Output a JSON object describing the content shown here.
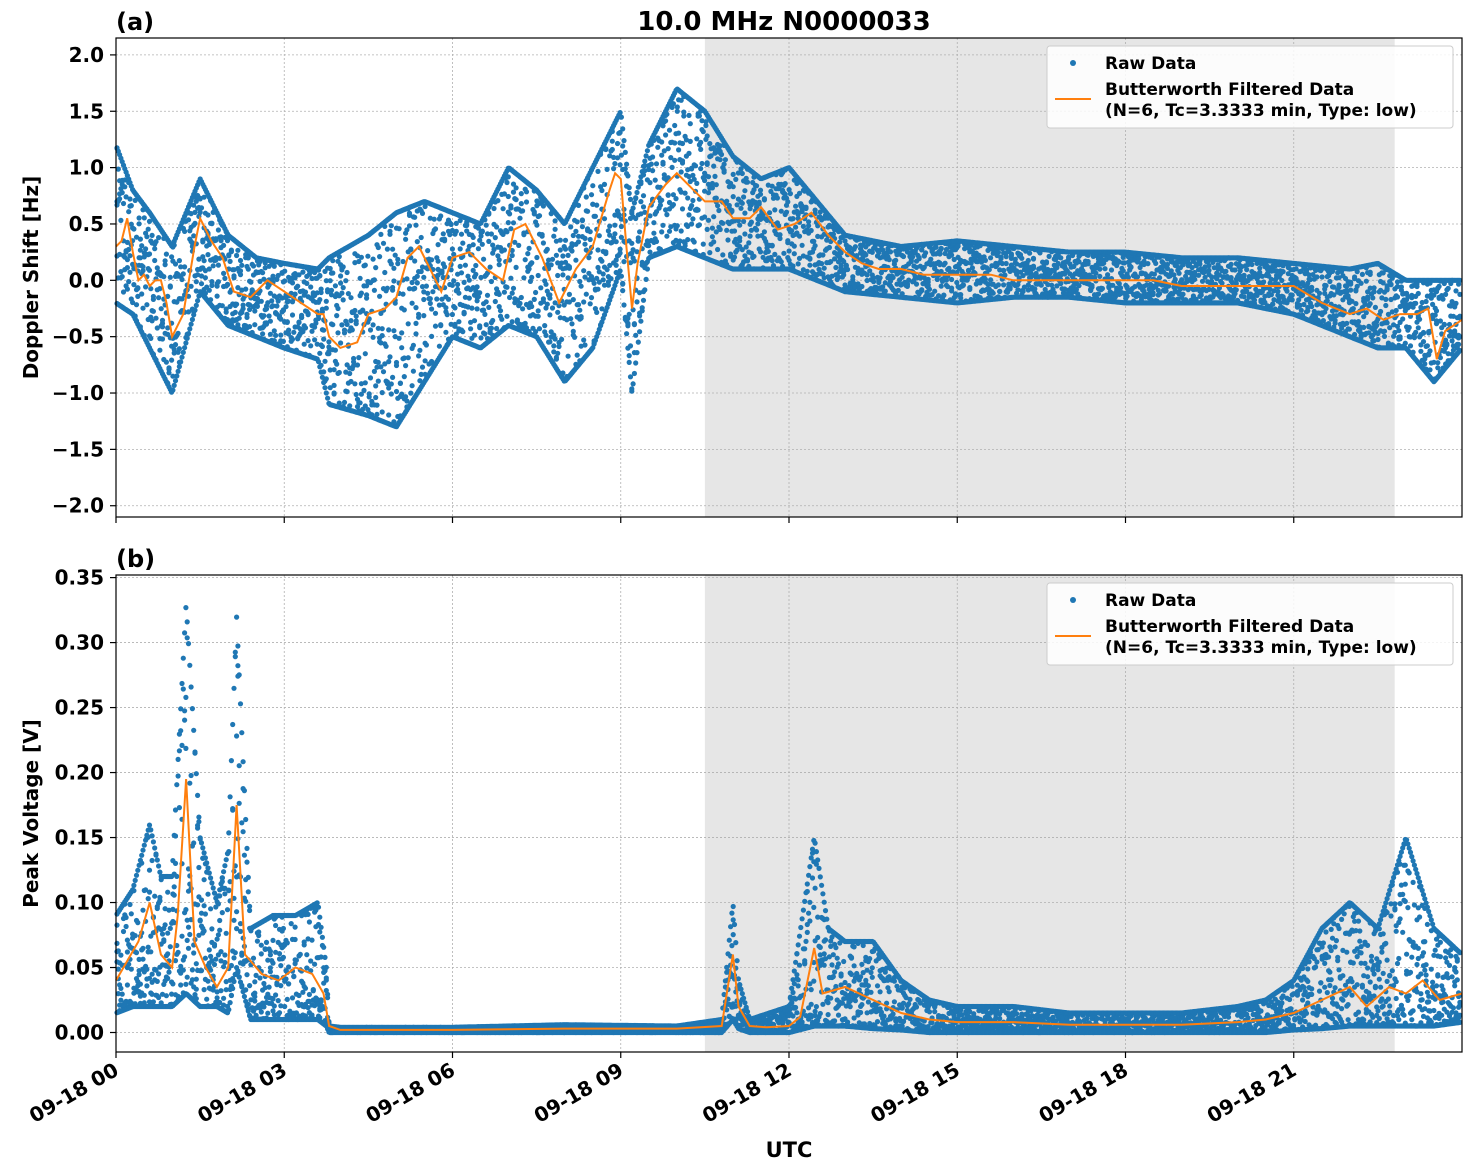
{
  "figure": {
    "title": "10.0 MHz N0000033",
    "xlabel": "UTC",
    "x_ticks": [
      "09-18 00",
      "09-18 03",
      "09-18 06",
      "09-18 09",
      "09-18 12",
      "09-18 15",
      "09-18 18",
      "09-18 21"
    ],
    "x_tick_hours": [
      0,
      3,
      6,
      9,
      12,
      15,
      18,
      21
    ],
    "xlim_hours": [
      0,
      24
    ],
    "shaded_region_hours": [
      10.5,
      22.8
    ],
    "colors": {
      "raw": "#1f77b4",
      "filtered": "#ff7f0e",
      "shade": "#e6e6e6",
      "grid": "#b0b0b0"
    }
  },
  "legend": {
    "raw_label": "Raw Data",
    "filtered_line1": "Butterworth Filtered Data",
    "filtered_line2": "(N=6, Tc=3.3333 min, Type: low)"
  },
  "chart_data": [
    {
      "type": "scatter",
      "panel_label": "(a)",
      "ylabel": "Doppler Shift [Hz]",
      "ylim": [
        -2.1,
        2.15
      ],
      "y_ticks": [
        2.0,
        1.5,
        1.0,
        0.5,
        0.0,
        -0.5,
        -1.0,
        -1.5,
        -2.0
      ],
      "y_tick_labels": [
        "2.0",
        "1.5",
        "1.0",
        "0.5",
        "0.0",
        "−0.5",
        "−1.0",
        "−1.5",
        "−2.0"
      ],
      "grid": true,
      "legend_position": "top-right",
      "series": [
        {
          "name": "Butterworth Filtered Data",
          "x_hours": [
            0,
            0.1,
            0.2,
            0.3,
            0.4,
            0.5,
            0.6,
            0.7,
            0.8,
            0.9,
            1.0,
            1.2,
            1.4,
            1.5,
            1.7,
            1.9,
            2.1,
            2.4,
            2.7,
            3.0,
            3.3,
            3.6,
            3.7,
            3.8,
            4.0,
            4.3,
            4.5,
            4.8,
            5.0,
            5.2,
            5.4,
            5.6,
            5.8,
            6.0,
            6.3,
            6.6,
            6.9,
            7.1,
            7.3,
            7.6,
            7.9,
            8.2,
            8.5,
            8.8,
            8.9,
            9.0,
            9.1,
            9.2,
            9.3,
            9.5,
            9.8,
            10.0,
            10.3,
            10.5,
            10.8,
            11.0,
            11.3,
            11.5,
            11.8,
            12.1,
            12.4,
            12.7,
            13.0,
            13.3,
            13.6,
            14.0,
            14.4,
            14.8,
            15.2,
            15.6,
            16.0,
            16.5,
            17.0,
            17.5,
            18.0,
            18.5,
            19.0,
            19.5,
            20.0,
            20.5,
            21.0,
            21.5,
            22.0,
            22.3,
            22.6,
            22.9,
            23.2,
            23.4,
            23.55,
            23.7,
            23.85,
            24.0
          ],
          "y": [
            0.3,
            0.35,
            0.55,
            0.25,
            0.0,
            0.05,
            -0.05,
            0.0,
            0.0,
            -0.2,
            -0.5,
            -0.3,
            0.3,
            0.55,
            0.35,
            0.2,
            -0.1,
            -0.15,
            0.0,
            -0.1,
            -0.2,
            -0.3,
            -0.3,
            -0.5,
            -0.6,
            -0.55,
            -0.3,
            -0.25,
            -0.15,
            0.2,
            0.3,
            0.1,
            -0.1,
            0.2,
            0.25,
            0.1,
            0.0,
            0.45,
            0.5,
            0.2,
            -0.2,
            0.1,
            0.3,
            0.8,
            0.95,
            0.9,
            0.3,
            -0.25,
            0.15,
            0.65,
            0.85,
            0.95,
            0.8,
            0.7,
            0.7,
            0.55,
            0.55,
            0.65,
            0.45,
            0.5,
            0.6,
            0.4,
            0.25,
            0.15,
            0.1,
            0.1,
            0.05,
            0.05,
            0.05,
            0.05,
            0.0,
            0.0,
            0.0,
            0.0,
            0.0,
            0.0,
            -0.05,
            -0.05,
            -0.05,
            -0.05,
            -0.05,
            -0.2,
            -0.3,
            -0.25,
            -0.35,
            -0.3,
            -0.3,
            -0.25,
            -0.7,
            -0.45,
            -0.4,
            -0.35
          ]
        }
      ],
      "raw_data_band": {
        "name": "Raw Data",
        "x_hours": [
          0,
          0.3,
          0.6,
          1.0,
          1.5,
          2.0,
          2.5,
          3.0,
          3.6,
          3.8,
          4.5,
          5.0,
          5.5,
          6.0,
          6.5,
          7.0,
          7.5,
          8.0,
          8.5,
          9.0,
          9.2,
          9.5,
          10.0,
          10.5,
          11.0,
          11.5,
          12.0,
          12.5,
          13.0,
          14.0,
          15.0,
          16.0,
          17.0,
          18.0,
          19.0,
          20.0,
          21.0,
          22.0,
          22.5,
          23.0,
          23.5,
          24.0
        ],
        "upper": [
          1.2,
          0.8,
          0.6,
          0.3,
          0.9,
          0.4,
          0.2,
          0.15,
          0.1,
          0.2,
          0.4,
          0.6,
          0.7,
          0.6,
          0.5,
          1.0,
          0.8,
          0.5,
          1.0,
          1.5,
          0.6,
          1.2,
          1.7,
          1.5,
          1.1,
          0.9,
          1.0,
          0.7,
          0.4,
          0.3,
          0.35,
          0.3,
          0.25,
          0.25,
          0.2,
          0.2,
          0.15,
          0.1,
          0.15,
          0.0,
          0.0,
          0.0
        ],
        "lower": [
          -0.2,
          -0.3,
          -0.6,
          -1.0,
          -0.1,
          -0.4,
          -0.5,
          -0.6,
          -0.7,
          -1.1,
          -1.2,
          -1.3,
          -0.9,
          -0.5,
          -0.6,
          -0.4,
          -0.5,
          -0.9,
          -0.6,
          0.1,
          -1.0,
          0.2,
          0.3,
          0.2,
          0.1,
          0.1,
          0.1,
          0.0,
          -0.1,
          -0.15,
          -0.2,
          -0.15,
          -0.15,
          -0.2,
          -0.2,
          -0.2,
          -0.3,
          -0.5,
          -0.6,
          -0.6,
          -0.9,
          -0.6
        ]
      }
    },
    {
      "type": "scatter",
      "panel_label": "(b)",
      "ylabel": "Peak Voltage [V]",
      "ylim": [
        -0.015,
        0.352
      ],
      "y_ticks": [
        0.35,
        0.3,
        0.25,
        0.2,
        0.15,
        0.1,
        0.05,
        0.0
      ],
      "y_tick_labels": [
        "0.35",
        "0.30",
        "0.25",
        "0.20",
        "0.15",
        "0.10",
        "0.05",
        "0.00"
      ],
      "grid": true,
      "legend_position": "top-right",
      "series": [
        {
          "name": "Butterworth Filtered Data",
          "x_hours": [
            0,
            0.2,
            0.4,
            0.6,
            0.8,
            1.0,
            1.1,
            1.25,
            1.4,
            1.6,
            1.8,
            2.0,
            2.15,
            2.3,
            2.6,
            2.9,
            3.2,
            3.5,
            3.7,
            3.8,
            4.0,
            6.0,
            8.0,
            10.0,
            10.8,
            11.0,
            11.1,
            11.3,
            11.6,
            12.0,
            12.2,
            12.45,
            12.6,
            13.0,
            13.5,
            14.0,
            14.5,
            15.0,
            16.0,
            17.0,
            18.0,
            19.0,
            20.0,
            20.5,
            21.0,
            21.5,
            22.0,
            22.3,
            22.7,
            23.0,
            23.3,
            23.6,
            24.0
          ],
          "y": [
            0.04,
            0.055,
            0.07,
            0.1,
            0.06,
            0.05,
            0.09,
            0.195,
            0.07,
            0.05,
            0.035,
            0.05,
            0.175,
            0.06,
            0.045,
            0.04,
            0.05,
            0.045,
            0.03,
            0.005,
            0.002,
            0.002,
            0.003,
            0.003,
            0.005,
            0.06,
            0.02,
            0.005,
            0.004,
            0.005,
            0.012,
            0.065,
            0.03,
            0.035,
            0.025,
            0.015,
            0.01,
            0.008,
            0.008,
            0.006,
            0.006,
            0.006,
            0.008,
            0.01,
            0.015,
            0.025,
            0.035,
            0.02,
            0.035,
            0.03,
            0.04,
            0.025,
            0.03
          ]
        }
      ],
      "raw_data_band": {
        "name": "Raw Data",
        "x_hours": [
          0,
          0.3,
          0.6,
          0.8,
          1.0,
          1.25,
          1.5,
          1.8,
          2.0,
          2.15,
          2.4,
          2.8,
          3.2,
          3.6,
          3.75,
          3.8,
          4.0,
          6.0,
          8.0,
          10.0,
          10.8,
          11.0,
          11.1,
          11.3,
          12.0,
          12.45,
          12.7,
          13.0,
          13.5,
          14.0,
          14.5,
          15.0,
          16.0,
          17.0,
          18.0,
          19.0,
          20.0,
          20.5,
          21.0,
          21.5,
          22.0,
          22.5,
          23.0,
          23.5,
          24.0
        ],
        "upper": [
          0.09,
          0.11,
          0.16,
          0.12,
          0.12,
          0.33,
          0.15,
          0.1,
          0.14,
          0.32,
          0.08,
          0.09,
          0.09,
          0.1,
          0.05,
          0.005,
          0.004,
          0.004,
          0.006,
          0.005,
          0.01,
          0.1,
          0.04,
          0.01,
          0.02,
          0.15,
          0.08,
          0.07,
          0.07,
          0.04,
          0.025,
          0.02,
          0.02,
          0.015,
          0.015,
          0.015,
          0.02,
          0.025,
          0.04,
          0.08,
          0.1,
          0.08,
          0.15,
          0.08,
          0.06
        ],
        "lower": [
          0.015,
          0.02,
          0.02,
          0.02,
          0.02,
          0.03,
          0.02,
          0.02,
          0.015,
          0.05,
          0.01,
          0.01,
          0.01,
          0.01,
          0.005,
          0.0,
          0.0,
          0.0,
          0.0,
          0.0,
          0.0,
          0.01,
          0.003,
          0.0,
          0.0,
          0.005,
          0.005,
          0.005,
          0.003,
          0.002,
          0.0,
          0.0,
          0.0,
          0.0,
          0.0,
          0.0,
          0.0,
          0.0,
          0.002,
          0.003,
          0.005,
          0.005,
          0.005,
          0.005,
          0.008
        ]
      }
    }
  ]
}
